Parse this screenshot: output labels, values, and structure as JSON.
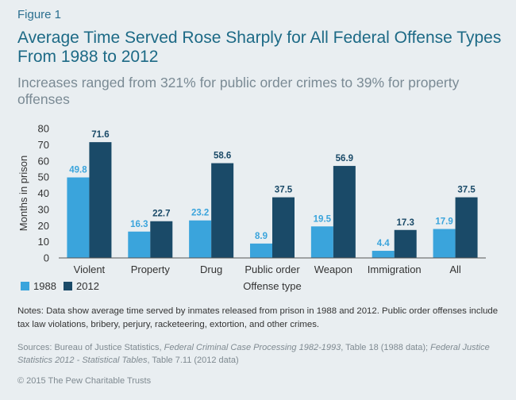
{
  "figure_label": "Figure 1",
  "title": "Average Time Served Rose Sharply for All Federal Offense Types From 1988 to 2012",
  "subtitle": "Increases ranged from 321% for public order crimes to 39% for property offenses",
  "notes": "Notes: Data show average time served by inmates released from prison in 1988 and 2012. Public order offenses include tax law violations, bribery, perjury, racketeering, extortion, and other crimes.",
  "sources": {
    "prefix": "Sources: Bureau of Justice Statistics, ",
    "source1": "Federal Criminal Case Processing 1982-1993",
    "mid": ", Table 18 (1988 data); ",
    "source2": "Federal Justice Statistics 2012 - Statistical Tables",
    "suffix": ", Table 7.11 (2012 data)"
  },
  "copyright": "© 2015 The Pew Charitable Trusts",
  "colors": {
    "s1988": "#3aa4dc",
    "s2012": "#1a4a68",
    "background": "#e9eef1"
  },
  "chart_data": {
    "type": "bar",
    "categories": [
      "Violent",
      "Property",
      "Drug",
      "Public order",
      "Weapon",
      "Immigration",
      "All"
    ],
    "series": [
      {
        "name": "1988",
        "values": [
          49.8,
          16.3,
          23.2,
          8.9,
          19.5,
          4.4,
          17.9
        ]
      },
      {
        "name": "2012",
        "values": [
          71.6,
          22.7,
          58.6,
          37.5,
          56.9,
          17.3,
          37.5
        ]
      }
    ],
    "xlabel": "Offense type",
    "ylabel": "Months in prison",
    "ylim": [
      0,
      80
    ],
    "yticks": [
      0,
      10,
      20,
      30,
      40,
      50,
      60,
      70,
      80
    ],
    "grid": false,
    "legend_position": "bottom-left"
  }
}
